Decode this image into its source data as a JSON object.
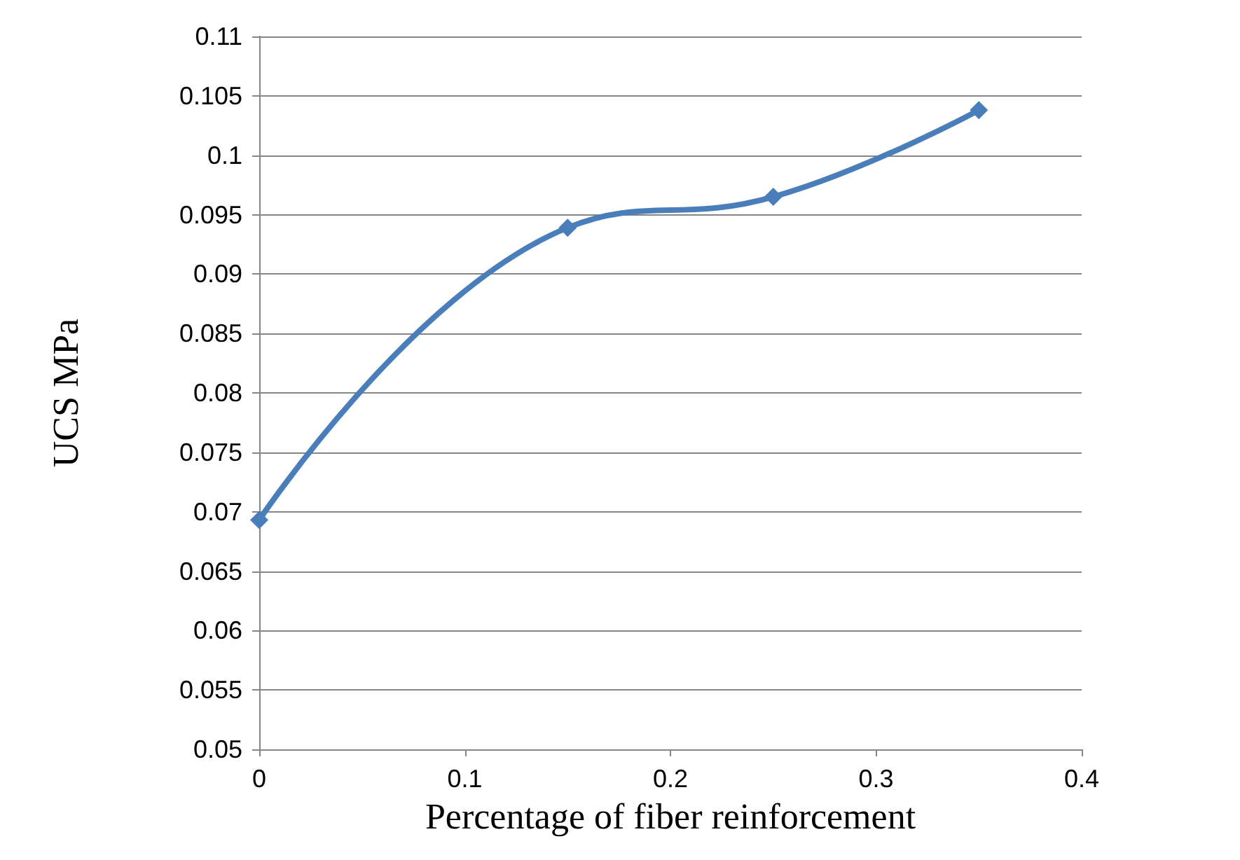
{
  "chart_data": {
    "type": "line",
    "xlabel": "Percentage of fiber reinforcement",
    "ylabel": "UCS MPa",
    "x": [
      0,
      0.15,
      0.25,
      0.35
    ],
    "series": [
      {
        "color": "#4a7ebb",
        "values": [
          0.0693,
          0.0939,
          0.0965,
          0.1038
        ]
      }
    ],
    "xlim": [
      0,
      0.4
    ],
    "xticks": [
      0,
      0.1,
      0.2,
      0.3,
      0.4
    ],
    "ylim": [
      0.05,
      0.11
    ],
    "yticks": [
      0.05,
      0.055,
      0.06,
      0.065,
      0.07,
      0.075,
      0.08,
      0.085,
      0.09,
      0.095,
      0.1,
      0.105,
      0.11
    ],
    "grid": "y",
    "marker": "diamond",
    "line_style": "solid"
  }
}
